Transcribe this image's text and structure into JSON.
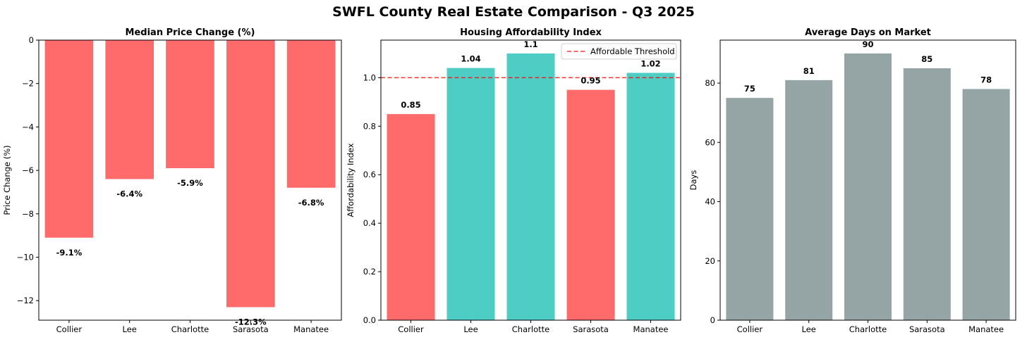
{
  "figure": {
    "title": "SWFL County Real Estate Comparison - Q3 2025"
  },
  "colors": {
    "negative": "#ff6b6b",
    "positive": "#4ecdc4",
    "neutral": "#95a5a6",
    "threshold": "#ff0000"
  },
  "chart_data": [
    {
      "type": "bar",
      "title": "Median Price Change (%)",
      "xlabel": "",
      "ylabel": "Price Change (%)",
      "categories": [
        "Collier",
        "Lee",
        "Charlotte",
        "Sarasota",
        "Manatee"
      ],
      "values": [
        -9.1,
        -6.4,
        -5.9,
        -12.3,
        -6.8
      ],
      "value_labels": [
        "-9.1%",
        "-6.4%",
        "-5.9%",
        "-12.3%",
        "-6.8%"
      ],
      "bar_colors": [
        "#ff6b6b",
        "#ff6b6b",
        "#ff6b6b",
        "#ff6b6b",
        "#ff6b6b"
      ],
      "ylim": [
        -12.9,
        0
      ],
      "yticks": [
        0,
        -2,
        -4,
        -6,
        -8,
        -10,
        -12
      ],
      "ytick_labels": [
        "0",
        "−2",
        "−4",
        "−6",
        "−8",
        "−10",
        "−12"
      ],
      "grid": false
    },
    {
      "type": "bar",
      "title": "Housing Affordability Index",
      "xlabel": "",
      "ylabel": "Affordability Index",
      "categories": [
        "Collier",
        "Lee",
        "Charlotte",
        "Sarasota",
        "Manatee"
      ],
      "values": [
        0.85,
        1.04,
        1.1,
        0.95,
        1.02
      ],
      "value_labels": [
        "0.85",
        "1.04",
        "1.1",
        "0.95",
        "1.02"
      ],
      "bar_colors": [
        "#ff6b6b",
        "#4ecdc4",
        "#4ecdc4",
        "#ff6b6b",
        "#4ecdc4"
      ],
      "ylim": [
        0,
        1.155
      ],
      "yticks": [
        0,
        0.2,
        0.4,
        0.6,
        0.8,
        1.0
      ],
      "ytick_labels": [
        "0.0",
        "0.2",
        "0.4",
        "0.6",
        "0.8",
        "1.0"
      ],
      "threshold": {
        "value": 1.0,
        "label": "Affordable Threshold"
      },
      "legend": "top-right",
      "grid": false
    },
    {
      "type": "bar",
      "title": "Average Days on Market",
      "xlabel": "",
      "ylabel": "Days",
      "categories": [
        "Collier",
        "Lee",
        "Charlotte",
        "Sarasota",
        "Manatee"
      ],
      "values": [
        75,
        81,
        90,
        85,
        78
      ],
      "value_labels": [
        "75",
        "81",
        "90",
        "85",
        "78"
      ],
      "bar_colors": [
        "#95a5a6",
        "#95a5a6",
        "#95a5a6",
        "#95a5a6",
        "#95a5a6"
      ],
      "ylim": [
        0,
        94.5
      ],
      "yticks": [
        0,
        20,
        40,
        60,
        80
      ],
      "ytick_labels": [
        "0",
        "20",
        "40",
        "60",
        "80"
      ],
      "grid": false
    }
  ]
}
